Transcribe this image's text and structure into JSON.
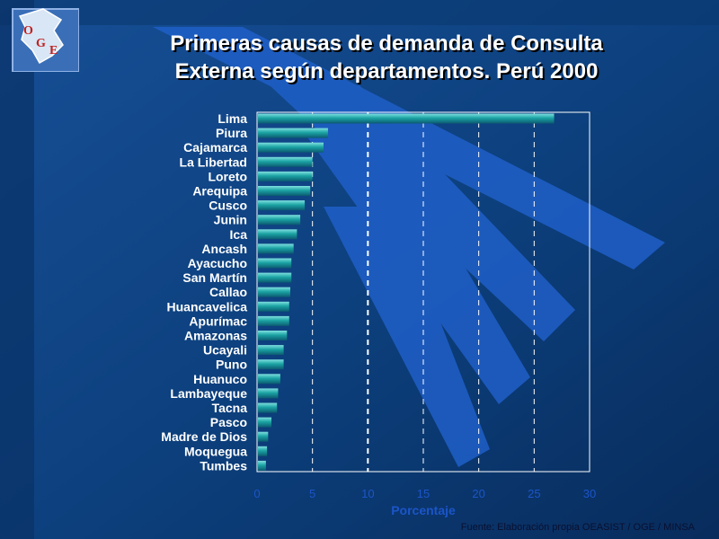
{
  "slide": {
    "title_line1": "Primeras causas de demanda de Consulta",
    "title_line2": "Externa según departamentos. Perú 2000",
    "source": "Fuente: Elaboración propia OEASIST / OGE / MINSA",
    "logo_letters": [
      "O",
      "G",
      "E"
    ]
  },
  "colors": {
    "background": "#0d3f7a",
    "stripe": "#1f5fc8",
    "bar": "#1ba3a3",
    "bar_highlight": "#7fe0e0",
    "tick_label": "#1c55c8",
    "title": "#ffffff"
  },
  "chart_data": {
    "type": "bar",
    "orientation": "horizontal",
    "title": "Primeras causas de demanda de Consulta Externa según departamentos. Perú 2000",
    "xlabel": "Porcentaje",
    "ylabel": "",
    "xlim": [
      0,
      30
    ],
    "xticks": [
      0,
      5,
      10,
      15,
      20,
      25,
      30
    ],
    "grid": true,
    "legend": "none",
    "categories": [
      "Lima",
      "Piura",
      "Cajamarca",
      "La Libertad",
      "Loreto",
      "Arequipa",
      "Cusco",
      "Junin",
      "Ica",
      "Ancash",
      "Ayacucho",
      "San Martín",
      "Callao",
      "Huancavelica",
      "Apurímac",
      "Amazonas",
      "Ucayali",
      "Puno",
      "Huanuco",
      "Lambayeque",
      "Tacna",
      "Pasco",
      "Madre de Dios",
      "Moquegua",
      "Tumbes"
    ],
    "values": [
      26.8,
      6.4,
      6.0,
      5.0,
      5.0,
      4.8,
      4.3,
      3.9,
      3.6,
      3.3,
      3.1,
      3.1,
      3.0,
      2.9,
      2.9,
      2.7,
      2.4,
      2.4,
      2.1,
      1.9,
      1.8,
      1.3,
      1.0,
      0.9,
      0.8
    ]
  }
}
